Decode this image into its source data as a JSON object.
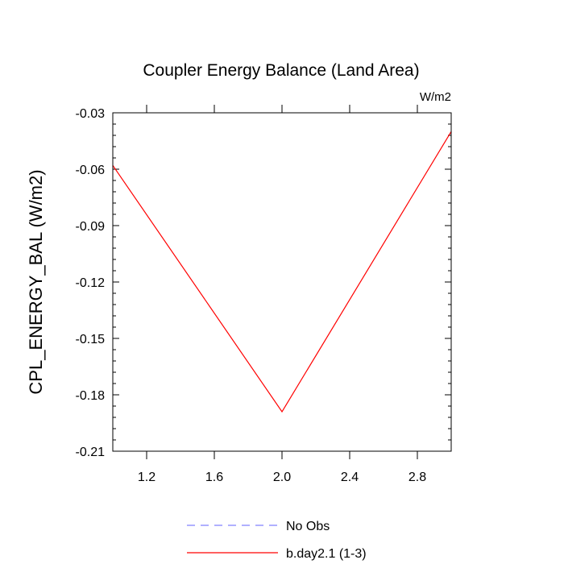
{
  "chart_data": {
    "type": "line",
    "title": "Coupler Energy Balance (Land Area)",
    "units_label": "W/m2",
    "ylabel": "CPL_ENERGY_BAL  (W/m2)",
    "xlabel": "",
    "xlim": [
      1.0,
      3.0
    ],
    "ylim": [
      -0.21,
      -0.03
    ],
    "xticks": [
      1.2,
      1.6,
      2.0,
      2.4,
      2.8
    ],
    "xtick_labels": [
      "1.2",
      "1.6",
      "2.0",
      "2.4",
      "2.8"
    ],
    "yticks": [
      -0.03,
      -0.06,
      -0.09,
      -0.12,
      -0.15,
      -0.18,
      -0.21
    ],
    "ytick_labels": [
      "-0.03",
      "-0.06",
      "-0.09",
      "-0.12",
      "-0.15",
      "-0.18",
      "-0.21"
    ],
    "grid": false,
    "legend_position": "bottom-center",
    "series": [
      {
        "name": "No Obs",
        "color": "#8080ff",
        "dashed": true,
        "x": [],
        "y": []
      },
      {
        "name": "b.day2.1 (1-3)",
        "color": "#ff0000",
        "dashed": false,
        "x": [
          1.0,
          2.0,
          3.0
        ],
        "y": [
          -0.058,
          -0.189,
          -0.04
        ]
      }
    ]
  }
}
